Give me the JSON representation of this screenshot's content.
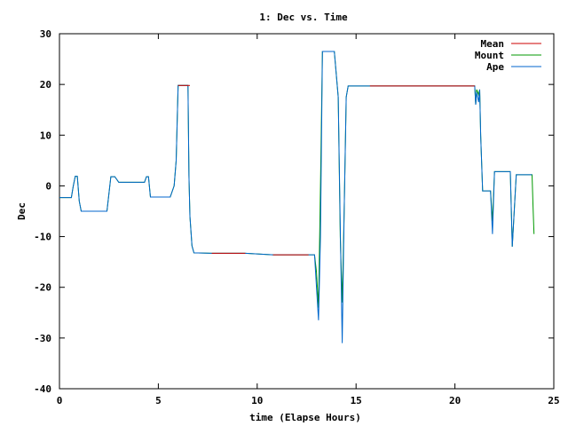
{
  "chart_data": {
    "type": "line",
    "title": "1: Dec vs. Time",
    "xlabel": "time (Elapse Hours)",
    "ylabel": "Dec",
    "xlim": [
      0,
      25
    ],
    "ylim": [
      -40,
      30
    ],
    "xticks": [
      0,
      5,
      10,
      15,
      20,
      25
    ],
    "yticks": [
      -40,
      -30,
      -20,
      -10,
      0,
      10,
      20,
      30
    ],
    "grid": false,
    "legend_position": "top-right",
    "series": [
      {
        "name": "Mean",
        "color": "#cc0000",
        "segments": [
          [
            [
              6.0,
              19.8
            ],
            [
              6.6,
              19.8
            ]
          ],
          [
            [
              7.7,
              -13.3
            ],
            [
              9.4,
              -13.3
            ]
          ],
          [
            [
              10.8,
              -13.6
            ],
            [
              12.6,
              -13.6
            ]
          ],
          [
            [
              15.7,
              19.7
            ],
            [
              21.0,
              19.7
            ]
          ]
        ]
      },
      {
        "name": "Mount",
        "color": "#009900",
        "segments": [
          [
            [
              0,
              -2.3
            ],
            [
              0.6,
              -2.3
            ],
            [
              0.7,
              0.0
            ],
            [
              0.8,
              1.9
            ],
            [
              0.9,
              1.9
            ],
            [
              1.0,
              -3.0
            ],
            [
              1.1,
              -5.0
            ],
            [
              2.4,
              -5.0
            ],
            [
              2.6,
              1.8
            ],
            [
              2.8,
              1.8
            ],
            [
              3.0,
              0.7
            ],
            [
              4.3,
              0.7
            ],
            [
              4.4,
              1.8
            ],
            [
              4.5,
              1.8
            ],
            [
              4.6,
              -2.2
            ],
            [
              5.6,
              -2.2
            ],
            [
              5.8,
              0.0
            ],
            [
              5.9,
              5.0
            ],
            [
              6.0,
              19.8
            ],
            [
              6.5,
              19.8
            ],
            [
              6.55,
              2.0
            ],
            [
              6.6,
              -6.0
            ],
            [
              6.7,
              -11.8
            ],
            [
              6.8,
              -13.2
            ],
            [
              7.7,
              -13.3
            ],
            [
              9.4,
              -13.3
            ],
            [
              10.8,
              -13.6
            ],
            [
              12.6,
              -13.6
            ],
            [
              12.9,
              -13.6
            ],
            [
              13.0,
              -17.0
            ],
            [
              13.1,
              -24.0
            ],
            [
              13.2,
              0.0
            ],
            [
              13.3,
              26.5
            ],
            [
              13.9,
              26.5
            ],
            [
              14.1,
              17.5
            ],
            [
              14.2,
              -10.0
            ],
            [
              14.3,
              -23.0
            ],
            [
              14.4,
              -5.0
            ],
            [
              14.5,
              17.5
            ],
            [
              14.6,
              19.7
            ],
            [
              21.0,
              19.7
            ],
            [
              21.05,
              16.0
            ],
            [
              21.1,
              19.0
            ],
            [
              21.2,
              18.0
            ],
            [
              21.25,
              19.0
            ],
            [
              21.3,
              10.0
            ],
            [
              21.4,
              -1.0
            ],
            [
              21.8,
              -1.0
            ],
            [
              21.9,
              -7.0
            ],
            [
              22.0,
              2.8
            ],
            [
              22.8,
              2.8
            ],
            [
              22.9,
              -12.0
            ],
            [
              23.0,
              -5.0
            ],
            [
              23.1,
              2.2
            ],
            [
              23.9,
              2.2
            ],
            [
              23.95,
              -4.0
            ],
            [
              24.0,
              -9.5
            ]
          ]
        ]
      },
      {
        "name": "Ape",
        "color": "#0066cc",
        "segments": [
          [
            [
              0,
              -2.3
            ],
            [
              0.6,
              -2.3
            ],
            [
              0.7,
              0.0
            ],
            [
              0.8,
              1.9
            ],
            [
              0.9,
              1.9
            ],
            [
              1.0,
              -3.0
            ],
            [
              1.1,
              -5.0
            ],
            [
              2.4,
              -5.0
            ],
            [
              2.6,
              1.8
            ],
            [
              2.8,
              1.8
            ],
            [
              3.0,
              0.7
            ],
            [
              4.3,
              0.7
            ],
            [
              4.4,
              1.8
            ],
            [
              4.5,
              1.8
            ],
            [
              4.6,
              -2.2
            ],
            [
              5.6,
              -2.2
            ],
            [
              5.8,
              0.0
            ],
            [
              5.9,
              5.0
            ],
            [
              6.0,
              19.8
            ],
            [
              6.5,
              19.8
            ],
            [
              6.55,
              2.0
            ],
            [
              6.6,
              -6.0
            ],
            [
              6.7,
              -11.8
            ],
            [
              6.8,
              -13.2
            ],
            [
              7.7,
              -13.3
            ],
            [
              9.4,
              -13.3
            ],
            [
              10.8,
              -13.6
            ],
            [
              12.6,
              -13.6
            ],
            [
              12.9,
              -13.6
            ],
            [
              13.0,
              -20.0
            ],
            [
              13.1,
              -26.5
            ],
            [
              13.2,
              -10.0
            ],
            [
              13.3,
              26.5
            ],
            [
              13.9,
              26.5
            ],
            [
              14.1,
              17.5
            ],
            [
              14.2,
              -8.0
            ],
            [
              14.3,
              -31.0
            ],
            [
              14.4,
              -5.0
            ],
            [
              14.5,
              17.5
            ],
            [
              14.6,
              19.7
            ],
            [
              21.0,
              19.7
            ],
            [
              21.05,
              16.0
            ],
            [
              21.1,
              18.5
            ],
            [
              21.2,
              16.5
            ],
            [
              21.25,
              19.0
            ],
            [
              21.3,
              10.0
            ],
            [
              21.4,
              -1.0
            ],
            [
              21.8,
              -1.0
            ],
            [
              21.9,
              -9.5
            ],
            [
              22.0,
              2.8
            ],
            [
              22.8,
              2.8
            ],
            [
              22.9,
              -12.0
            ],
            [
              23.0,
              -5.0
            ],
            [
              23.1,
              2.2
            ],
            [
              23.9,
              2.2
            ]
          ]
        ]
      }
    ]
  }
}
